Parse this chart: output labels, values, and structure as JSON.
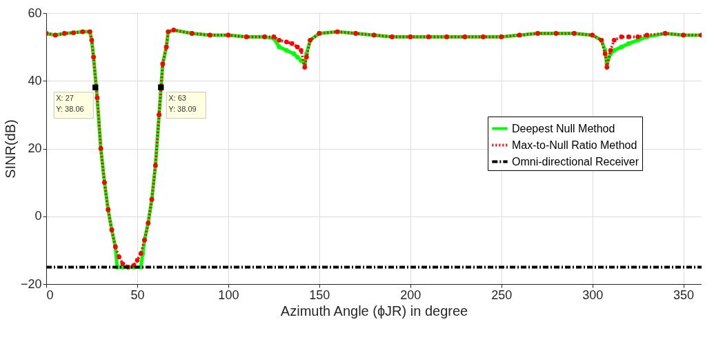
{
  "chart_data": {
    "type": "line",
    "xlabel": "Azimuth Angle (ϕJR) in degree",
    "ylabel": "SINR(dB)",
    "xlim": [
      0,
      360
    ],
    "ylim": [
      -20,
      60
    ],
    "xticks": [
      0,
      50,
      100,
      150,
      200,
      250,
      300,
      350
    ],
    "yticks": [
      -20,
      0,
      20,
      40,
      60
    ],
    "grid": true,
    "legend": "right",
    "series": [
      {
        "name": "Deepest Null Method",
        "color": "#00ff00",
        "marker": "circle",
        "line_style": "solid",
        "x": [
          0,
          5,
          10,
          15,
          20,
          24,
          25,
          26,
          28,
          30,
          32,
          34,
          36,
          38,
          39,
          42,
          45,
          48,
          52,
          53,
          54,
          56,
          58,
          60,
          62,
          64,
          66,
          67,
          70,
          80,
          90,
          100,
          110,
          120,
          125,
          128,
          132,
          136,
          138,
          140,
          142,
          143,
          145,
          150,
          160,
          170,
          180,
          190,
          200,
          210,
          220,
          230,
          240,
          250,
          260,
          270,
          280,
          290,
          300,
          305,
          307,
          308,
          310,
          312,
          316,
          320,
          325,
          330,
          340,
          350,
          360
        ],
        "values": [
          54,
          53.5,
          54,
          54.2,
          54.5,
          54.5,
          52,
          47,
          35,
          20,
          10,
          2,
          -4,
          -9,
          -15,
          -15,
          -15,
          -15,
          -15,
          -11,
          -7,
          -2,
          5,
          15,
          30,
          45,
          50,
          54.5,
          55,
          54,
          53.5,
          53.5,
          53,
          53,
          52.5,
          50,
          49,
          48,
          47,
          46,
          45,
          48,
          52,
          54,
          54.5,
          54,
          53.5,
          53,
          53,
          53,
          53,
          53,
          53,
          53,
          53.5,
          54,
          54,
          54,
          53.5,
          52,
          49,
          45,
          48,
          49,
          50,
          51,
          52,
          53,
          54,
          53.5,
          53.5
        ]
      },
      {
        "name": "Max-to-Null Ratio Method",
        "color": "#ff0000",
        "marker": "circle",
        "line_style": "dotted",
        "x": [
          0,
          5,
          10,
          15,
          20,
          24,
          25,
          26,
          28,
          30,
          32,
          34,
          36,
          38,
          40,
          42,
          45,
          48,
          50,
          52,
          54,
          56,
          58,
          60,
          62,
          64,
          66,
          67,
          70,
          80,
          90,
          100,
          110,
          120,
          125,
          128,
          132,
          135,
          138,
          140,
          142,
          143,
          145,
          150,
          160,
          170,
          180,
          190,
          200,
          210,
          220,
          230,
          240,
          250,
          260,
          270,
          280,
          290,
          300,
          305,
          307,
          308,
          310,
          312,
          316,
          320,
          325,
          330,
          340,
          350,
          360
        ],
        "values": [
          54,
          53.5,
          54,
          54.2,
          54.5,
          54.5,
          52,
          47,
          35,
          20,
          10,
          2,
          -4,
          -9,
          -12,
          -14,
          -15,
          -14.5,
          -13,
          -11,
          -7,
          -2,
          5,
          15,
          30,
          45,
          50,
          54.5,
          55,
          54,
          53.5,
          53.5,
          53,
          53,
          53,
          52,
          51.5,
          51,
          50,
          49,
          44,
          47,
          52,
          54,
          54.5,
          54,
          53.5,
          53,
          53,
          53,
          53,
          53,
          53,
          53,
          53.5,
          54,
          54,
          54,
          53.5,
          52,
          48,
          44,
          49,
          52,
          53,
          53,
          53,
          53.5,
          54,
          53.5,
          53.5
        ]
      },
      {
        "name": "Omni-directional Receiver",
        "color": "#000000",
        "marker": "none",
        "line_style": "dashdot",
        "x": [
          0,
          360
        ],
        "values": [
          -15,
          -15
        ]
      }
    ],
    "annotations": [
      {
        "text": "X: 27\nY: 38.06",
        "x": 27,
        "y": 38.06
      },
      {
        "text": "X: 63\nY: 38.09",
        "x": 63,
        "y": 38.09
      }
    ]
  }
}
